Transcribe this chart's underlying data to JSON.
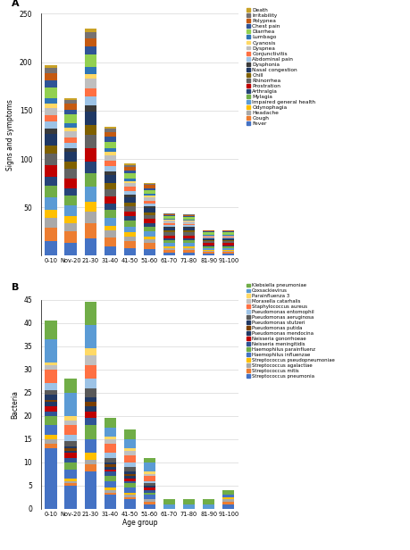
{
  "panel_a": {
    "age_groups": [
      "0-10",
      "Nov-20",
      "21-30",
      "31-40",
      "41-50",
      "51-60",
      "61-70",
      "71-80",
      "81-90",
      "91-100"
    ],
    "ylabel": "Signs and symptoms",
    "ylim": [
      0,
      250
    ],
    "yticks": [
      50,
      100,
      150,
      200,
      250
    ],
    "symptoms": [
      {
        "name": "Fever",
        "color": "#4472C4",
        "values": [
          15,
          13,
          18,
          10,
          8,
          7,
          3,
          3,
          2,
          2
        ]
      },
      {
        "name": "Cough",
        "color": "#ED7D31",
        "values": [
          14,
          12,
          16,
          9,
          7,
          6,
          3,
          3,
          2,
          2
        ]
      },
      {
        "name": "Headache",
        "color": "#A9A9A9",
        "values": [
          10,
          9,
          12,
          7,
          5,
          4,
          2,
          2,
          1,
          1
        ]
      },
      {
        "name": "Odynophagia",
        "color": "#FFC000",
        "values": [
          8,
          7,
          10,
          5,
          4,
          3,
          2,
          2,
          1,
          1
        ]
      },
      {
        "name": "Impaired general health",
        "color": "#5B9BD5",
        "values": [
          13,
          11,
          15,
          8,
          6,
          5,
          3,
          3,
          2,
          2
        ]
      },
      {
        "name": "Mylagia",
        "color": "#70AD47",
        "values": [
          12,
          10,
          14,
          8,
          6,
          5,
          3,
          3,
          2,
          2
        ]
      },
      {
        "name": "Arthralgia",
        "color": "#264478",
        "values": [
          10,
          8,
          12,
          7,
          5,
          4,
          2,
          2,
          1,
          1
        ]
      },
      {
        "name": "Prostration",
        "color": "#C00000",
        "values": [
          12,
          10,
          14,
          7,
          5,
          4,
          3,
          3,
          2,
          2
        ]
      },
      {
        "name": "Rhinorrhea",
        "color": "#636363",
        "values": [
          12,
          10,
          14,
          8,
          5,
          4,
          3,
          3,
          2,
          2
        ]
      },
      {
        "name": "Chill",
        "color": "#7F6000",
        "values": [
          8,
          7,
          10,
          6,
          4,
          3,
          2,
          2,
          1,
          1
        ]
      },
      {
        "name": "Nasal congestion",
        "color": "#1F3864",
        "values": [
          12,
          10,
          14,
          8,
          5,
          4,
          3,
          3,
          2,
          2
        ]
      },
      {
        "name": "Dysphonia",
        "color": "#3A3A3A",
        "values": [
          5,
          4,
          6,
          4,
          3,
          2,
          1,
          1,
          0,
          0
        ]
      },
      {
        "name": "Abdominal pain",
        "color": "#9DC3E6",
        "values": [
          8,
          6,
          10,
          6,
          4,
          3,
          2,
          2,
          1,
          1
        ]
      },
      {
        "name": "Conjunctivitis",
        "color": "#FF7043",
        "values": [
          6,
          5,
          8,
          5,
          4,
          3,
          2,
          1,
          1,
          1
        ]
      },
      {
        "name": "Dyspnea",
        "color": "#BFBFBF",
        "values": [
          8,
          7,
          10,
          6,
          4,
          3,
          2,
          2,
          1,
          1
        ]
      },
      {
        "name": "Cyanosis",
        "color": "#FFD966",
        "values": [
          4,
          3,
          5,
          3,
          2,
          2,
          1,
          1,
          0,
          0
        ]
      },
      {
        "name": "Lumbago",
        "color": "#2E75B6",
        "values": [
          6,
          5,
          7,
          4,
          3,
          2,
          1,
          1,
          1,
          1
        ]
      },
      {
        "name": "Diarrhea",
        "color": "#92D050",
        "values": [
          11,
          9,
          13,
          7,
          5,
          4,
          3,
          3,
          2,
          2
        ]
      },
      {
        "name": "Chest pain",
        "color": "#2F5496",
        "values": [
          7,
          5,
          8,
          5,
          3,
          2,
          1,
          1,
          1,
          1
        ]
      },
      {
        "name": "Polypnea",
        "color": "#C55A11",
        "values": [
          8,
          6,
          9,
          5,
          4,
          3,
          1,
          1,
          1,
          1
        ]
      },
      {
        "name": "Irritability",
        "color": "#767171",
        "values": [
          5,
          4,
          6,
          3,
          2,
          1,
          1,
          1,
          0,
          0
        ]
      },
      {
        "name": "Death",
        "color": "#C9A227",
        "values": [
          3,
          2,
          4,
          2,
          1,
          1,
          0,
          0,
          0,
          0
        ]
      }
    ]
  },
  "panel_b": {
    "age_groups": [
      "0-10",
      "Nov-20",
      "21-30",
      "31-40",
      "41-50",
      "51-60",
      "61-70",
      "71-80",
      "81-90",
      "91-100"
    ],
    "ylabel": "Bacteria",
    "ylim": [
      0,
      45
    ],
    "yticks": [
      0,
      5,
      10,
      15,
      20,
      25,
      30,
      35,
      40,
      45
    ],
    "bacteria": [
      {
        "name": "Streptococcus pneumonia",
        "color": "#4472C4",
        "values": [
          13,
          5,
          8,
          3,
          2,
          1,
          0,
          0,
          0,
          1
        ]
      },
      {
        "name": "Streptococcus mitis",
        "color": "#ED7D31",
        "values": [
          1,
          0.5,
          1.5,
          0.5,
          0.5,
          0.5,
          0,
          0,
          0,
          0.5
        ]
      },
      {
        "name": "Streptococcus agalactiae",
        "color": "#A9A9A9",
        "values": [
          1,
          0.5,
          1,
          0.5,
          0.5,
          0.5,
          0,
          0,
          0,
          0.5
        ]
      },
      {
        "name": "Streptococcus pseudopneumoniae",
        "color": "#FFC000",
        "values": [
          1,
          0.5,
          1.5,
          0.5,
          0.5,
          0,
          0,
          0,
          0,
          0.5
        ]
      },
      {
        "name": "Haemophilus influenzae",
        "color": "#4472C4",
        "values": [
          2,
          2,
          3,
          1.5,
          1,
          1,
          0,
          0,
          0,
          0.5
        ]
      },
      {
        "name": "Haemophilus parainfluenz",
        "color": "#70AD47",
        "values": [
          2,
          1.5,
          3,
          1,
          1,
          0.5,
          0,
          0,
          0,
          0
        ]
      },
      {
        "name": "Neisseria meningitidis",
        "color": "#2F5496",
        "values": [
          1,
          1,
          1.5,
          1,
          0.5,
          0.5,
          0,
          0,
          0,
          0
        ]
      },
      {
        "name": "Neisseria gonorrhoeae",
        "color": "#C00000",
        "values": [
          1,
          1,
          1.5,
          0.5,
          0.5,
          0.5,
          0,
          0,
          0,
          0
        ]
      },
      {
        "name": "Pseudomonas mendocina",
        "color": "#1F3864",
        "values": [
          1,
          0.5,
          1,
          0.5,
          0.5,
          0,
          0,
          0,
          0,
          0
        ]
      },
      {
        "name": "Pseudomonas putida",
        "color": "#7B3F00",
        "values": [
          0.5,
          0.5,
          1,
          0.5,
          0.5,
          0,
          0,
          0,
          0,
          0
        ]
      },
      {
        "name": "Pseudomonas stutzeri",
        "color": "#203864",
        "values": [
          1,
          0.5,
          1,
          0.5,
          0.5,
          0.5,
          0,
          0,
          0,
          0
        ]
      },
      {
        "name": "Pseudomonas aeruginosa",
        "color": "#595959",
        "values": [
          1,
          1,
          2,
          1,
          1,
          0.5,
          0,
          0,
          0,
          0
        ]
      },
      {
        "name": "Pseudomonas entomophil",
        "color": "#9DC3E6",
        "values": [
          1.5,
          1.5,
          2,
          1,
          1,
          0.5,
          0,
          0,
          0,
          0
        ]
      },
      {
        "name": "Staphylococcus aureus",
        "color": "#FF7043",
        "values": [
          3,
          2,
          3,
          2,
          1.5,
          1,
          0,
          0,
          0,
          0
        ]
      },
      {
        "name": "Moraxella catarhalis",
        "color": "#C0C0C0",
        "values": [
          1,
          1,
          2,
          1,
          1,
          0.5,
          0,
          0,
          0,
          0
        ]
      },
      {
        "name": "Parainfluenza 3",
        "color": "#FFD966",
        "values": [
          0.5,
          1,
          1.5,
          0.5,
          0.5,
          0.5,
          0,
          0,
          0,
          0
        ]
      },
      {
        "name": "Coxsackievirus",
        "color": "#5B9BD5",
        "values": [
          5,
          5,
          5,
          2,
          2,
          2,
          1,
          1,
          1,
          0
        ]
      },
      {
        "name": "Klebsiella pneumoniae",
        "color": "#70AD47",
        "values": [
          4,
          3,
          5,
          2,
          2,
          1,
          1,
          1,
          1,
          1
        ]
      }
    ]
  },
  "fig_width": 4.6,
  "fig_height": 6.16,
  "dpi": 100
}
